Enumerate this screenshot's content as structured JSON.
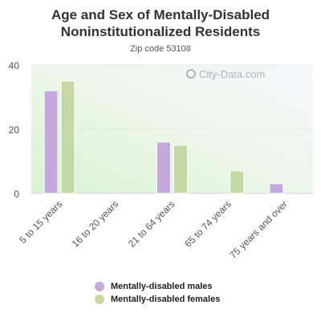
{
  "chart_data": {
    "type": "bar",
    "title": "Age and Sex of Mentally-Disabled Noninstitutionalized Residents",
    "subtitle": "Zip code 53108",
    "categories": [
      "5 to 15 years",
      "16 to 20 years",
      "21 to 64 years",
      "65 to 74 years",
      "75 years and over"
    ],
    "series": [
      {
        "name": "Mentally-disabled males",
        "values": [
          32,
          0,
          16,
          0,
          3
        ],
        "color": "#c3a9dc"
      },
      {
        "name": "Mentally-disabled females",
        "values": [
          35,
          0,
          15,
          7,
          0
        ],
        "color": "#c6d9a5"
      }
    ],
    "ylim": [
      0,
      40
    ],
    "yticks": [
      0,
      20,
      40
    ],
    "grid": true,
    "legend": "bottom"
  },
  "watermark": {
    "text": "City-Data.com"
  }
}
